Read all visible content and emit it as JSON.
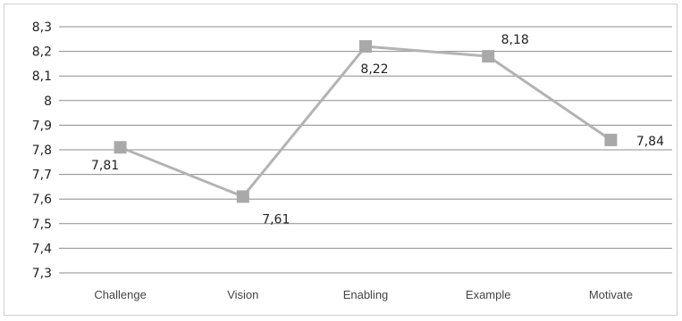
{
  "chart_data": {
    "type": "line",
    "categories": [
      "Challenge",
      "Vision",
      "Enabling",
      "Example",
      "Motivate"
    ],
    "series": [
      {
        "values": [
          7.81,
          7.61,
          8.22,
          8.18,
          7.84
        ],
        "value_labels": [
          "7,81",
          "7,61",
          "8,22",
          "8,18",
          "7,84"
        ]
      }
    ],
    "ylim": [
      7.3,
      8.3
    ],
    "yticks": [
      7.3,
      7.4,
      7.5,
      7.6,
      7.7,
      7.8,
      7.9,
      8.0,
      8.1,
      8.2,
      8.3
    ],
    "ytick_labels": [
      "7,3",
      "7,4",
      "7,5",
      "7,6",
      "7,7",
      "7,8",
      "7,9",
      "8",
      "8,1",
      "8,2",
      "8,3"
    ],
    "grid": true,
    "legend": "none",
    "line_color": "#b3b3b3",
    "marker_color": "#a9a9a9",
    "marker": "square"
  }
}
